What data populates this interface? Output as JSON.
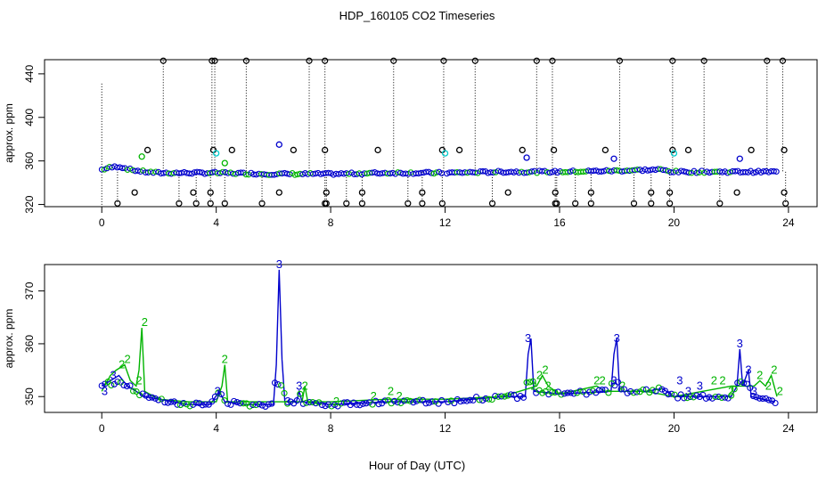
{
  "title": "HDP_160105  CO2 Timeseries",
  "xlabel": "Hour of Day (UTC)",
  "colors": {
    "black": "#000000",
    "blue": "#0000cc",
    "green": "#00b400",
    "cyan": "#00cccc"
  },
  "chart_data": [
    {
      "type": "scatter",
      "panel": "top",
      "ylabel": "approx. ppm",
      "xlim": [
        -2,
        25
      ],
      "ylim": [
        318,
        453
      ],
      "xticks": [
        0,
        4,
        8,
        12,
        16,
        20,
        24
      ],
      "yticks": [
        320,
        360,
        400,
        440
      ],
      "baseline": [
        [
          0,
          352
        ],
        [
          0.3,
          354
        ],
        [
          0.6,
          355
        ],
        [
          1,
          352
        ],
        [
          1.5,
          350
        ],
        [
          2,
          349
        ],
        [
          4,
          349
        ],
        [
          6,
          348
        ],
        [
          8,
          348
        ],
        [
          10,
          349
        ],
        [
          12,
          349
        ],
        [
          14,
          350
        ],
        [
          15.5,
          350
        ],
        [
          16,
          350
        ],
        [
          18,
          351
        ],
        [
          19.5,
          352
        ],
        [
          20,
          350
        ],
        [
          22,
          350
        ],
        [
          23.5,
          350
        ]
      ],
      "outliers_high": [
        2.15,
        3.85,
        3.95,
        5.05,
        7.25,
        7.8,
        10.2,
        11.95,
        13.05,
        15.2,
        15.75,
        18.1,
        19.95,
        21.05,
        23.25,
        23.8
      ],
      "outliers_low": [
        0.55,
        2.7,
        3.3,
        3.8,
        4.3,
        5.6,
        7.8,
        7.85,
        8.55,
        9.1,
        10.7,
        11.2,
        11.9,
        13.65,
        15.85,
        15.9,
        16.55,
        17.1,
        18.6,
        19.2,
        19.85,
        21.6,
        23.9
      ],
      "mid_points": [
        {
          "x": 1.15,
          "y": 331,
          "c": "black"
        },
        {
          "x": 1.6,
          "y": 370,
          "c": "black"
        },
        {
          "x": 3.2,
          "y": 331,
          "c": "black"
        },
        {
          "x": 3.9,
          "y": 370,
          "c": "black"
        },
        {
          "x": 3.8,
          "y": 331,
          "c": "black"
        },
        {
          "x": 4.55,
          "y": 370,
          "c": "black"
        },
        {
          "x": 6.2,
          "y": 331,
          "c": "black"
        },
        {
          "x": 6.7,
          "y": 370,
          "c": "black"
        },
        {
          "x": 7.85,
          "y": 331,
          "c": "black"
        },
        {
          "x": 7.8,
          "y": 370,
          "c": "black"
        },
        {
          "x": 9.1,
          "y": 331,
          "c": "black"
        },
        {
          "x": 9.65,
          "y": 370,
          "c": "black"
        },
        {
          "x": 11.2,
          "y": 331,
          "c": "black"
        },
        {
          "x": 11.9,
          "y": 370,
          "c": "black"
        },
        {
          "x": 12.5,
          "y": 370,
          "c": "black"
        },
        {
          "x": 14.2,
          "y": 331,
          "c": "black"
        },
        {
          "x": 14.7,
          "y": 370,
          "c": "black"
        },
        {
          "x": 15.8,
          "y": 370,
          "c": "black"
        },
        {
          "x": 15.85,
          "y": 331,
          "c": "black"
        },
        {
          "x": 17.1,
          "y": 331,
          "c": "black"
        },
        {
          "x": 17.6,
          "y": 370,
          "c": "black"
        },
        {
          "x": 19.2,
          "y": 331,
          "c": "black"
        },
        {
          "x": 19.85,
          "y": 331,
          "c": "black"
        },
        {
          "x": 19.95,
          "y": 370,
          "c": "black"
        },
        {
          "x": 20.5,
          "y": 370,
          "c": "black"
        },
        {
          "x": 22.2,
          "y": 331,
          "c": "black"
        },
        {
          "x": 22.7,
          "y": 370,
          "c": "black"
        },
        {
          "x": 23.85,
          "y": 331,
          "c": "black"
        },
        {
          "x": 23.85,
          "y": 370,
          "c": "black"
        },
        {
          "x": 6.2,
          "y": 375,
          "c": "blue"
        },
        {
          "x": 14.85,
          "y": 363,
          "c": "blue"
        },
        {
          "x": 17.9,
          "y": 362,
          "c": "blue"
        },
        {
          "x": 22.3,
          "y": 362,
          "c": "blue"
        },
        {
          "x": 4.0,
          "y": 367,
          "c": "cyan"
        },
        {
          "x": 12.0,
          "y": 367,
          "c": "cyan"
        },
        {
          "x": 20.0,
          "y": 367,
          "c": "cyan"
        },
        {
          "x": 1.4,
          "y": 364,
          "c": "green"
        },
        {
          "x": 4.3,
          "y": 358,
          "c": "green"
        }
      ]
    },
    {
      "type": "line",
      "panel": "bottom",
      "ylabel": "approx. ppm",
      "xlim": [
        -2,
        25
      ],
      "ylim": [
        347,
        375
      ],
      "xticks": [
        0,
        4,
        8,
        12,
        16,
        20,
        24
      ],
      "yticks": [
        350,
        360,
        370
      ],
      "series": [
        {
          "color": "blue",
          "points": [
            [
              0,
              352
            ],
            [
              0.3,
              353
            ],
            [
              0.6,
              354
            ],
            [
              0.9,
              352
            ],
            [
              1.2,
              351
            ],
            [
              1.5,
              350
            ],
            [
              2,
              349.5
            ],
            [
              2.5,
              349
            ],
            [
              3,
              348.5
            ],
            [
              3.8,
              348.5
            ],
            [
              4.1,
              351
            ],
            [
              4.3,
              349
            ],
            [
              5,
              348.5
            ],
            [
              6,
              348.5
            ],
            [
              6.1,
              356
            ],
            [
              6.2,
              374
            ],
            [
              6.3,
              357
            ],
            [
              6.4,
              349
            ],
            [
              6.8,
              349
            ],
            [
              6.9,
              351
            ],
            [
              7.0,
              349
            ],
            [
              8,
              348.5
            ],
            [
              10,
              349
            ],
            [
              12,
              349
            ],
            [
              14,
              350
            ],
            [
              14.8,
              350
            ],
            [
              14.9,
              358
            ],
            [
              15.0,
              361
            ],
            [
              15.1,
              351
            ],
            [
              16,
              350.5
            ],
            [
              17.8,
              351
            ],
            [
              17.9,
              358
            ],
            [
              18.0,
              361
            ],
            [
              18.1,
              351
            ],
            [
              19,
              351
            ],
            [
              19.6,
              351.5
            ],
            [
              20,
              350
            ],
            [
              21,
              350
            ],
            [
              22,
              350
            ],
            [
              22.2,
              352
            ],
            [
              22.3,
              359
            ],
            [
              22.4,
              352
            ],
            [
              22.6,
              355
            ],
            [
              22.7,
              350
            ],
            [
              23.5,
              349
            ]
          ]
        },
        {
          "color": "green",
          "points": [
            [
              0,
              351
            ],
            [
              0.3,
              354
            ],
            [
              0.5,
              355
            ],
            [
              0.8,
              356
            ],
            [
              1.0,
              353
            ],
            [
              1.2,
              352
            ],
            [
              1.3,
              355
            ],
            [
              1.4,
              363
            ],
            [
              1.5,
              351
            ],
            [
              2,
              349.5
            ],
            [
              3,
              349
            ],
            [
              4,
              349
            ],
            [
              4.2,
              352
            ],
            [
              4.3,
              356
            ],
            [
              4.4,
              349
            ],
            [
              6,
              349
            ],
            [
              7,
              349
            ],
            [
              7.1,
              352
            ],
            [
              7.2,
              349
            ],
            [
              8,
              349
            ],
            [
              10,
              349.5
            ],
            [
              12,
              349.5
            ],
            [
              14,
              350
            ],
            [
              15.2,
              352
            ],
            [
              15.4,
              354
            ],
            [
              15.6,
              352
            ],
            [
              16,
              350.5
            ],
            [
              17.3,
              352
            ],
            [
              17.6,
              351
            ],
            [
              19,
              351
            ],
            [
              20,
              350
            ],
            [
              21,
              351
            ],
            [
              22,
              352
            ],
            [
              22.8,
              352
            ],
            [
              23.0,
              353
            ],
            [
              23.2,
              352
            ],
            [
              23.4,
              354
            ],
            [
              23.6,
              350
            ]
          ]
        }
      ],
      "labels": [
        {
          "x": 0.1,
          "y": 351,
          "t": "3",
          "c": "blue"
        },
        {
          "x": 0.4,
          "y": 354,
          "t": "3",
          "c": "blue"
        },
        {
          "x": 0.7,
          "y": 356,
          "t": "2",
          "c": "green"
        },
        {
          "x": 0.9,
          "y": 357,
          "t": "2",
          "c": "green"
        },
        {
          "x": 1.3,
          "y": 353,
          "t": "2",
          "c": "green"
        },
        {
          "x": 1.5,
          "y": 364,
          "t": "2",
          "c": "green"
        },
        {
          "x": 4.05,
          "y": 351,
          "t": "3",
          "c": "blue"
        },
        {
          "x": 4.3,
          "y": 357,
          "t": "2",
          "c": "green"
        },
        {
          "x": 6.2,
          "y": 375,
          "t": "3",
          "c": "blue"
        },
        {
          "x": 6.5,
          "y": 349,
          "t": "3",
          "c": "blue"
        },
        {
          "x": 6.9,
          "y": 352,
          "t": "3",
          "c": "blue"
        },
        {
          "x": 7.1,
          "y": 352,
          "t": "2",
          "c": "green"
        },
        {
          "x": 8.2,
          "y": 349,
          "t": "2",
          "c": "green"
        },
        {
          "x": 9.5,
          "y": 350,
          "t": "2",
          "c": "green"
        },
        {
          "x": 10.1,
          "y": 351,
          "t": "2",
          "c": "green"
        },
        {
          "x": 10.4,
          "y": 350,
          "t": "2",
          "c": "green"
        },
        {
          "x": 14.9,
          "y": 361,
          "t": "3",
          "c": "blue"
        },
        {
          "x": 15.1,
          "y": 352,
          "t": "2",
          "c": "green"
        },
        {
          "x": 15.3,
          "y": 354,
          "t": "2",
          "c": "green"
        },
        {
          "x": 15.5,
          "y": 355,
          "t": "2",
          "c": "green"
        },
        {
          "x": 15.6,
          "y": 352,
          "t": "2",
          "c": "green"
        },
        {
          "x": 17.3,
          "y": 353,
          "t": "2",
          "c": "green"
        },
        {
          "x": 17.5,
          "y": 353,
          "t": "2",
          "c": "green"
        },
        {
          "x": 17.9,
          "y": 353,
          "t": "3",
          "c": "blue"
        },
        {
          "x": 18.0,
          "y": 361,
          "t": "3",
          "c": "blue"
        },
        {
          "x": 18.2,
          "y": 352,
          "t": "2",
          "c": "green"
        },
        {
          "x": 20.2,
          "y": 353,
          "t": "3",
          "c": "blue"
        },
        {
          "x": 20.5,
          "y": 351,
          "t": "3",
          "c": "blue"
        },
        {
          "x": 20.9,
          "y": 352,
          "t": "3",
          "c": "blue"
        },
        {
          "x": 21.4,
          "y": 353,
          "t": "2",
          "c": "green"
        },
        {
          "x": 21.7,
          "y": 353,
          "t": "2",
          "c": "green"
        },
        {
          "x": 22.0,
          "y": 351,
          "t": "2",
          "c": "green"
        },
        {
          "x": 22.3,
          "y": 360,
          "t": "3",
          "c": "blue"
        },
        {
          "x": 22.6,
          "y": 355,
          "t": "3",
          "c": "blue"
        },
        {
          "x": 22.8,
          "y": 351,
          "t": "3",
          "c": "blue"
        },
        {
          "x": 23.0,
          "y": 354,
          "t": "2",
          "c": "green"
        },
        {
          "x": 23.3,
          "y": 352,
          "t": "2",
          "c": "green"
        },
        {
          "x": 23.5,
          "y": 355,
          "t": "2",
          "c": "green"
        },
        {
          "x": 23.7,
          "y": 351,
          "t": "2",
          "c": "green"
        }
      ]
    }
  ]
}
